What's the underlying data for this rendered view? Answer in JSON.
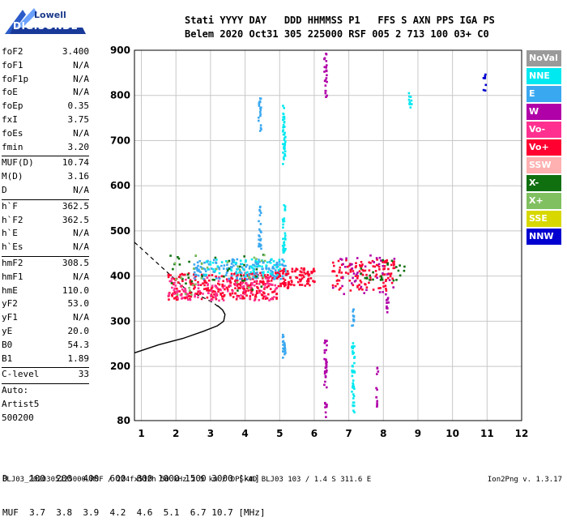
{
  "logo": {
    "top": "Lowell",
    "bottom": "DIGISONDE"
  },
  "header": {
    "line1": "Stati YYYY DAY   DDD HHMMSS P1   FFS S AXN PPS IGA PS",
    "line2": "Belem 2020 Oct31 305 225000 RSF 005 2 713 100 03+ C0"
  },
  "parameters": [
    {
      "name": "foF2",
      "value": "3.400"
    },
    {
      "name": "foF1",
      "value": "N/A"
    },
    {
      "name": "foF1p",
      "value": "N/A"
    },
    {
      "name": "foE",
      "value": "N/A"
    },
    {
      "name": "foEp",
      "value": "0.35"
    },
    {
      "name": "fxI",
      "value": "3.75"
    },
    {
      "name": "foEs",
      "value": "N/A"
    },
    {
      "name": "fmin",
      "value": "3.20"
    },
    {
      "name": "sep"
    },
    {
      "name": "MUF(D)",
      "value": "10.74"
    },
    {
      "name": "M(D)",
      "value": "3.16"
    },
    {
      "name": "D",
      "value": "N/A"
    },
    {
      "name": "sep"
    },
    {
      "name": "h`F",
      "value": "362.5"
    },
    {
      "name": "h`F2",
      "value": "362.5"
    },
    {
      "name": "h`E",
      "value": "N/A"
    },
    {
      "name": "h`Es",
      "value": "N/A"
    },
    {
      "name": "sep"
    },
    {
      "name": "hmF2",
      "value": "308.5"
    },
    {
      "name": "hmF1",
      "value": "N/A"
    },
    {
      "name": "hmE",
      "value": "110.0"
    },
    {
      "name": "yF2",
      "value": "53.0"
    },
    {
      "name": "yF1",
      "value": "N/A"
    },
    {
      "name": "yE",
      "value": "20.0"
    },
    {
      "name": "B0",
      "value": "54.3"
    },
    {
      "name": "B1",
      "value": "1.89"
    },
    {
      "name": "sep"
    },
    {
      "name": "C-level",
      "value": "33"
    },
    {
      "name": "sep"
    },
    {
      "name": "Auto:",
      "value": ""
    },
    {
      "name": "Artist5",
      "value": ""
    },
    {
      "name": "500200",
      "value": ""
    }
  ],
  "legend": [
    {
      "label": "NoVal",
      "color": "#9a9a9a"
    },
    {
      "label": "NNE",
      "color": "#00e8f0"
    },
    {
      "label": "E",
      "color": "#3aa8f0"
    },
    {
      "label": "W",
      "color": "#b000a8"
    },
    {
      "label": "Vo-",
      "color": "#ff3090"
    },
    {
      "label": "Vo+",
      "color": "#ff0030"
    },
    {
      "label": "SSW",
      "color": "#ffb0b0"
    },
    {
      "label": "X-",
      "color": "#107010"
    },
    {
      "label": "X+",
      "color": "#80c060"
    },
    {
      "label": "SSE",
      "color": "#d8d800"
    },
    {
      "label": "NNW",
      "color": "#0000d0"
    }
  ],
  "dist_table": {
    "line1": "D    100  200  400  600  800 1000 1500 3000 [km]",
    "line2": "MUF  3.7  3.8  3.9  4.2  4.6  5.1  6.7 10.7 [MHz]"
  },
  "footer": {
    "left": "BLJ03_2020305225000.RSF / 224fx512h 50 kHz 2.5 km / DPS-4D BLJ03 103 / 1.4 S 311.6 E",
    "right": "Ion2Png v. 1.3.17"
  },
  "chart_data": {
    "type": "scatter",
    "x_ticks": [
      1,
      2,
      3,
      4,
      5,
      6,
      7,
      8,
      9,
      10,
      11,
      12
    ],
    "y_ticks": [
      80,
      200,
      300,
      400,
      500,
      600,
      700,
      800,
      900
    ],
    "xlim": [
      0.8,
      12
    ],
    "ylim": [
      80,
      900
    ],
    "x_unit": "MHz",
    "y_unit": "km",
    "grid": true,
    "legend_position": "right",
    "profile_curve": {
      "color": "#000000",
      "points": [
        [
          0.8,
          230
        ],
        [
          1.5,
          248
        ],
        [
          2.2,
          262
        ],
        [
          2.8,
          278
        ],
        [
          3.2,
          290
        ],
        [
          3.38,
          300
        ],
        [
          3.42,
          315
        ],
        [
          3.35,
          325
        ],
        [
          3.2,
          335
        ]
      ]
    },
    "dashed_curve": {
      "color": "#000000",
      "points": [
        [
          0.8,
          475
        ],
        [
          1.3,
          440
        ],
        [
          1.8,
          405
        ],
        [
          2.3,
          370
        ],
        [
          2.8,
          352
        ],
        [
          3.1,
          340
        ],
        [
          3.25,
          330
        ]
      ]
    },
    "trace_segments": [
      {
        "mode": "Vo+",
        "f_start": 1.75,
        "f_end": 4.9,
        "h_start": 350,
        "h_end": 410,
        "density": 300
      },
      {
        "mode": "Vo-",
        "f_start": 1.75,
        "f_end": 4.9,
        "h_start": 348,
        "h_end": 400,
        "density": 120
      },
      {
        "mode": "E",
        "f_start": 2.5,
        "f_end": 5.2,
        "h_start": 395,
        "h_end": 440,
        "density": 160
      },
      {
        "mode": "NNE",
        "f_start": 2.8,
        "f_end": 5.2,
        "h_start": 400,
        "h_end": 440,
        "density": 70
      },
      {
        "mode": "X-",
        "f_start": 1.8,
        "f_end": 4.5,
        "h_start": 370,
        "h_end": 450,
        "density": 35
      },
      {
        "mode": "X+",
        "f_start": 1.8,
        "f_end": 4.6,
        "h_start": 360,
        "h_end": 450,
        "density": 30
      },
      {
        "mode": "Vo+",
        "f_start": 4.9,
        "f_end": 6.0,
        "h_start": 375,
        "h_end": 420,
        "density": 100
      },
      {
        "mode": "Vo+",
        "f_start": 6.5,
        "f_end": 8.3,
        "h_start": 370,
        "h_end": 440,
        "density": 120
      },
      {
        "mode": "W",
        "f_start": 6.5,
        "f_end": 8.4,
        "h_start": 360,
        "h_end": 450,
        "density": 40
      },
      {
        "mode": "X-",
        "f_start": 7.3,
        "f_end": 8.6,
        "h_start": 390,
        "h_end": 440,
        "density": 25
      }
    ],
    "vertical_streaks": [
      {
        "mode": "E",
        "f": 4.4,
        "h_start": 460,
        "h_end": 560,
        "density": 25
      },
      {
        "mode": "E",
        "f": 4.4,
        "h_start": 720,
        "h_end": 800,
        "density": 20
      },
      {
        "mode": "NNE",
        "f": 5.1,
        "h_start": 440,
        "h_end": 560,
        "density": 30
      },
      {
        "mode": "NNE",
        "f": 5.1,
        "h_start": 650,
        "h_end": 780,
        "density": 40
      },
      {
        "mode": "E",
        "f": 5.1,
        "h_start": 220,
        "h_end": 280,
        "density": 20
      },
      {
        "mode": "W",
        "f": 6.3,
        "h_start": 80,
        "h_end": 260,
        "density": 35
      },
      {
        "mode": "W",
        "f": 6.3,
        "h_start": 790,
        "h_end": 900,
        "density": 25
      },
      {
        "mode": "NNE",
        "f": 7.1,
        "h_start": 100,
        "h_end": 260,
        "density": 45
      },
      {
        "mode": "E",
        "f": 7.1,
        "h_start": 290,
        "h_end": 330,
        "density": 12
      },
      {
        "mode": "W",
        "f": 7.8,
        "h_start": 110,
        "h_end": 200,
        "density": 12
      },
      {
        "mode": "W",
        "f": 8.1,
        "h_start": 320,
        "h_end": 360,
        "density": 10
      },
      {
        "mode": "NNE",
        "f": 8.75,
        "h_start": 770,
        "h_end": 810,
        "density": 10
      },
      {
        "mode": "NNW",
        "f": 10.9,
        "h_start": 810,
        "h_end": 860,
        "density": 8
      }
    ]
  }
}
